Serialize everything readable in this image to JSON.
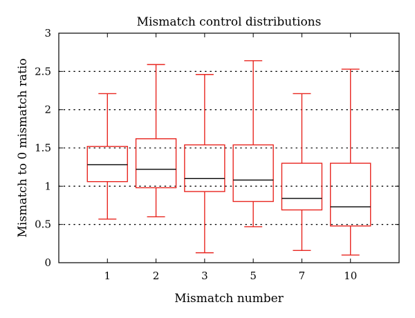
{
  "chart_data": {
    "type": "box",
    "title": "Mismatch control distributions",
    "xlabel": "Mismatch number",
    "ylabel": "Mismatch to 0 mismatch ratio",
    "ylim": [
      0,
      3
    ],
    "yticks": [
      "0",
      "0.5",
      "1",
      "1.5",
      "2",
      "2.5",
      "3"
    ],
    "grid": "horizontal-dotted",
    "colors": {
      "box": "#e8251f",
      "median": "#000000",
      "grid": "#000000",
      "axes": "#000000"
    },
    "categories": [
      "1",
      "2",
      "3",
      "5",
      "7",
      "10"
    ],
    "boxes": [
      {
        "label": "1",
        "min": 0.57,
        "q1": 1.06,
        "median": 1.28,
        "q3": 1.52,
        "max": 2.21
      },
      {
        "label": "2",
        "min": 0.6,
        "q1": 0.98,
        "median": 1.22,
        "q3": 1.62,
        "max": 2.59
      },
      {
        "label": "3",
        "min": 0.13,
        "q1": 0.93,
        "median": 1.1,
        "q3": 1.54,
        "max": 2.46
      },
      {
        "label": "5",
        "min": 0.47,
        "q1": 0.8,
        "median": 1.08,
        "q3": 1.54,
        "max": 2.64
      },
      {
        "label": "7",
        "min": 0.16,
        "q1": 0.69,
        "median": 0.84,
        "q3": 1.3,
        "max": 2.21
      },
      {
        "label": "10",
        "min": 0.1,
        "q1": 0.48,
        "median": 0.73,
        "q3": 1.3,
        "max": 2.53
      }
    ]
  }
}
